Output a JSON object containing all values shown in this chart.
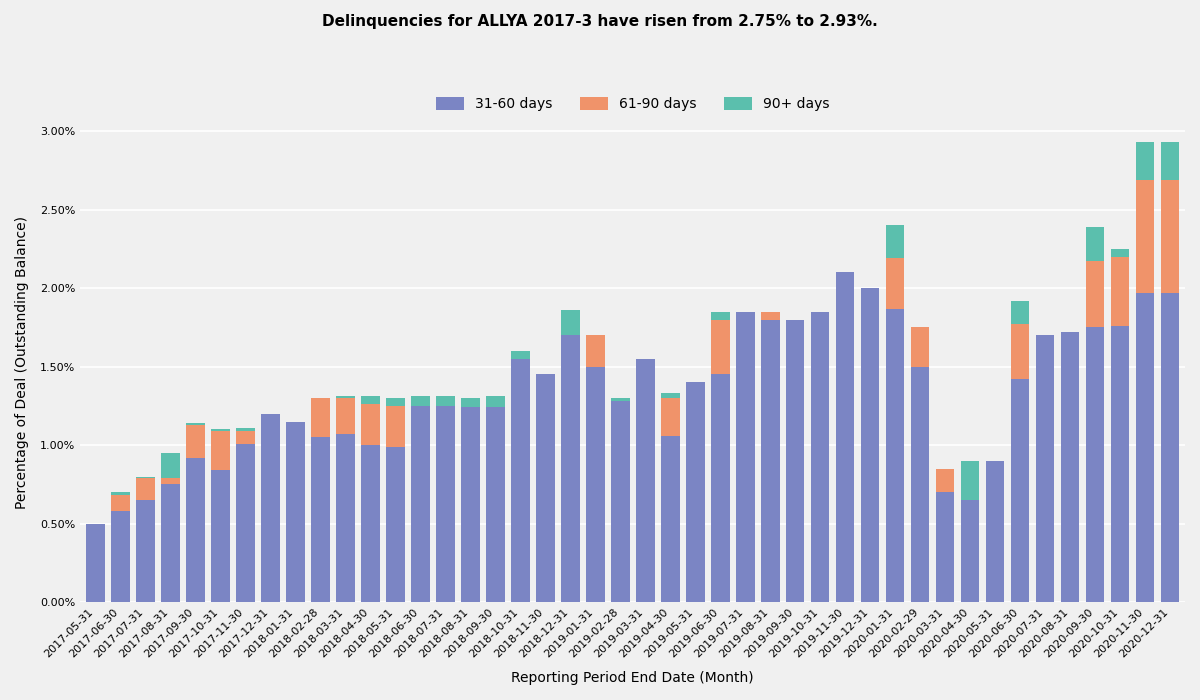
{
  "title": "Delinquencies for ALLYA 2017-3 have risen from 2.75% to 2.93%.",
  "xlabel": "Reporting Period End Date (Month)",
  "ylabel": "Percentage of Deal (Outstanding Balance)",
  "categories": [
    "2017-05-31",
    "2017-06-30",
    "2017-07-31",
    "2017-08-31",
    "2017-09-30",
    "2017-10-31",
    "2017-11-30",
    "2017-12-31",
    "2018-01-31",
    "2018-02-28",
    "2018-03-31",
    "2018-04-30",
    "2018-05-31",
    "2018-06-30",
    "2018-07-31",
    "2018-08-31",
    "2018-09-30",
    "2018-10-31",
    "2018-11-30",
    "2018-12-31",
    "2019-01-31",
    "2019-02-28",
    "2019-03-31",
    "2019-04-30",
    "2019-05-31",
    "2019-06-30",
    "2019-07-31",
    "2019-08-31",
    "2019-09-30",
    "2019-10-31",
    "2019-11-30",
    "2019-12-31",
    "2020-01-31",
    "2020-02-29",
    "2020-03-31",
    "2020-04-30",
    "2020-05-31",
    "2020-06-30",
    "2020-07-31",
    "2020-08-31",
    "2020-09-30",
    "2020-10-31",
    "2020-11-30",
    "2020-12-31"
  ],
  "series_31_60": [
    0.005,
    0.0058,
    0.0065,
    0.0075,
    0.0092,
    0.0084,
    0.0101,
    0.012,
    0.0115,
    0.0105,
    0.0107,
    0.01,
    0.0099,
    0.0125,
    0.0125,
    0.0124,
    0.0124,
    0.0155,
    0.0145,
    0.017,
    0.015,
    0.0128,
    0.0155,
    0.0106,
    0.014,
    0.0145,
    0.0185,
    0.018,
    0.018,
    0.0185,
    0.021,
    0.02,
    0.0187,
    0.015,
    0.007,
    0.0065,
    0.009,
    0.0142,
    0.017,
    0.0172,
    0.0175,
    0.0176,
    0.0197,
    0.0197
  ],
  "series_61_90": [
    0.0,
    0.001,
    0.0014,
    0.0004,
    0.0021,
    0.0025,
    0.0008,
    0.0,
    0.0,
    0.0025,
    0.0023,
    0.0026,
    0.0026,
    0.0,
    0.0,
    0.0,
    0.0,
    0.0,
    0.0,
    0.0,
    0.002,
    0.0,
    0.0,
    0.0024,
    0.0,
    0.0035,
    0.0,
    0.0005,
    0.0,
    0.0,
    0.0,
    0.0,
    0.0032,
    0.0025,
    0.0015,
    0.0,
    0.0,
    0.0035,
    0.0,
    0.0,
    0.0042,
    0.0044,
    0.0072,
    0.0072
  ],
  "series_90plus": [
    0.0,
    0.0002,
    0.0001,
    0.0016,
    0.0001,
    0.0001,
    0.0002,
    0.0,
    0.0,
    0.0,
    0.0001,
    0.0005,
    0.0005,
    0.0006,
    0.0006,
    0.0006,
    0.0007,
    0.0005,
    0.0,
    0.0016,
    0.0,
    0.0002,
    0.0,
    0.0003,
    0.0,
    0.0005,
    0.0,
    0.0,
    0.0,
    0.0,
    0.0,
    0.0,
    0.0021,
    0.0,
    0.0,
    0.0025,
    0.0,
    0.0015,
    0.0,
    0.0,
    0.0022,
    0.0005,
    0.0024,
    0.0024
  ],
  "color_31_60": "#7b85c4",
  "color_61_90": "#f0936a",
  "color_90plus": "#5bbfad",
  "background_color": "#f0f0f0",
  "title_fontsize": 11,
  "label_fontsize": 10,
  "tick_fontsize": 8
}
